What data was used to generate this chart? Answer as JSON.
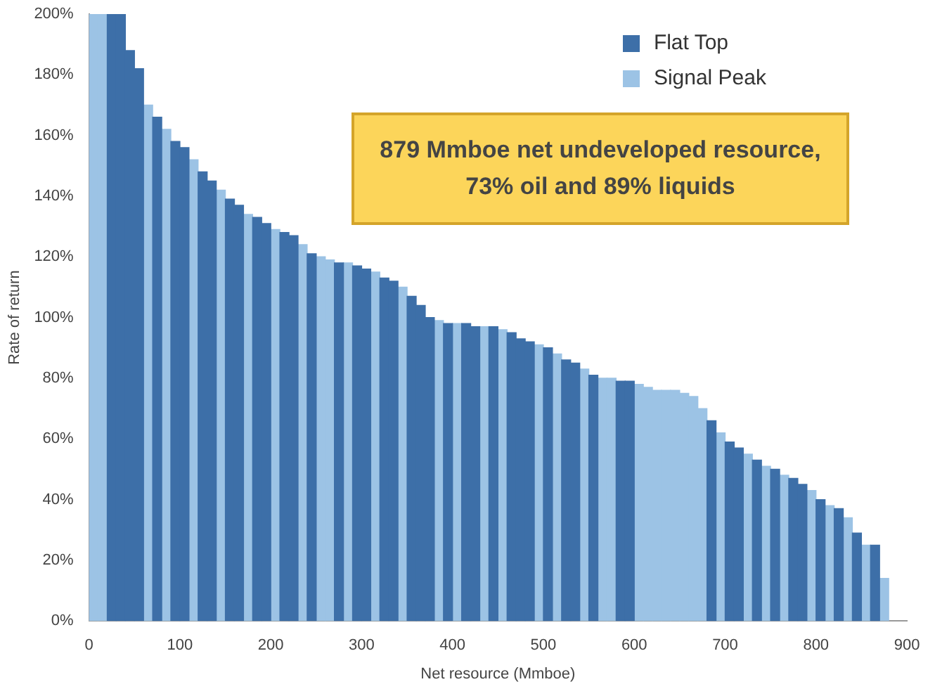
{
  "chart_data": {
    "type": "bar",
    "xlabel": "Net resource (Mmboe)",
    "ylabel": "Rate of return",
    "annotations": [
      "879 Mmboe net undeveloped resource, 73% oil and 89% liquids"
    ],
    "xlim": [
      0,
      900
    ],
    "xticks": [
      0,
      100,
      200,
      300,
      400,
      500,
      600,
      700,
      800,
      900
    ],
    "ylim": [
      0,
      200
    ],
    "yticks": [
      {
        "value": 0,
        "label": "0%"
      },
      {
        "value": 20,
        "label": "20%"
      },
      {
        "value": 40,
        "label": "40%"
      },
      {
        "value": 60,
        "label": "60%"
      },
      {
        "value": 80,
        "label": "80%"
      },
      {
        "value": 100,
        "label": "100%"
      },
      {
        "value": 120,
        "label": "120%"
      },
      {
        "value": 140,
        "label": "140%"
      },
      {
        "value": 160,
        "label": "160%"
      },
      {
        "value": 180,
        "label": "180%"
      },
      {
        "value": 200,
        "label": "200%"
      }
    ],
    "grid": false,
    "legend": "top right",
    "series": [
      {
        "name": "Flat Top",
        "color": "#3d6fa8",
        "x": [
          25,
          35,
          45,
          55,
          75,
          95,
          105,
          125,
          135,
          155,
          165,
          185,
          195,
          215,
          225,
          245,
          275,
          295,
          305,
          325,
          335,
          355,
          365,
          375,
          395,
          415,
          425,
          445,
          465,
          475,
          485,
          505,
          525,
          535,
          555,
          585,
          595,
          685,
          705,
          715,
          735,
          755,
          775,
          785,
          805,
          825,
          845,
          865
        ],
        "values": [
          200,
          200,
          188,
          182,
          166,
          158,
          156,
          148,
          145,
          139,
          137,
          133,
          131,
          128,
          127,
          121,
          118,
          117,
          116,
          113,
          112,
          107,
          104,
          100,
          98,
          98,
          97,
          97,
          95,
          93,
          92,
          90,
          86,
          85,
          81,
          79,
          79,
          66,
          59,
          57,
          53,
          50,
          47,
          45,
          40,
          37,
          29,
          25
        ]
      },
      {
        "name": "Signal Peak",
        "color": "#9cc3e5",
        "x": [
          5,
          15,
          65,
          85,
          115,
          145,
          175,
          205,
          235,
          255,
          265,
          285,
          315,
          345,
          385,
          405,
          435,
          455,
          495,
          515,
          545,
          565,
          575,
          605,
          615,
          625,
          635,
          645,
          655,
          665,
          675,
          695,
          725,
          745,
          765,
          795,
          815,
          835,
          855,
          875
        ],
        "values": [
          200,
          200,
          170,
          162,
          152,
          142,
          134,
          129,
          124,
          120,
          119,
          118,
          115,
          110,
          99,
          98,
          97,
          96,
          91,
          88,
          83,
          80,
          80,
          78,
          77,
          76,
          76,
          76,
          75,
          74,
          70,
          62,
          55,
          51,
          48,
          43,
          38,
          34,
          25,
          14
        ]
      }
    ]
  }
}
